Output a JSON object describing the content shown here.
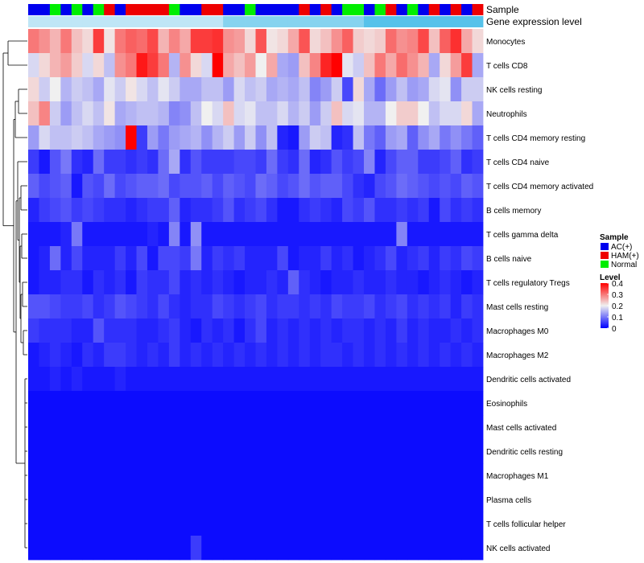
{
  "chart_data": {
    "type": "heatmap",
    "title": "",
    "annotation_rows": [
      {
        "name": "Sample",
        "label": "Sample"
      },
      {
        "name": "Gene expression level",
        "label": "Gene expression level"
      }
    ],
    "legend_sample": {
      "title": "Sample",
      "entries": [
        {
          "label": "AC(+)",
          "color": "#0000ee"
        },
        {
          "label": "HAM(+)",
          "color": "#ee0000"
        },
        {
          "label": "Normal",
          "color": "#00ee00"
        }
      ]
    },
    "legend_level": {
      "title": "Level",
      "ticks": [
        "0.4",
        "0.3",
        "0.2",
        "0.1",
        "0"
      ],
      "range": [
        0,
        0.4
      ],
      "colors": {
        "low": "#0000ff",
        "mid": "#f0f0f0",
        "high": "#ff0000"
      }
    },
    "sample_groups": [
      "A",
      "A",
      "N",
      "A",
      "N",
      "A",
      "N",
      "H",
      "A",
      "H",
      "H",
      "H",
      "H",
      "N",
      "A",
      "A",
      "H",
      "H",
      "A",
      "A",
      "N",
      "A",
      "A",
      "A",
      "A",
      "H",
      "A",
      "H",
      "A",
      "N",
      "N",
      "A",
      "N",
      "H",
      "A",
      "N",
      "A",
      "H",
      "A",
      "H",
      "A",
      "H"
    ],
    "gene_expression_level": [
      1,
      1,
      1,
      1,
      1,
      1,
      1,
      1,
      1,
      1,
      1,
      1,
      1,
      1,
      1,
      1,
      1,
      1,
      2,
      2,
      2,
      2,
      2,
      2,
      2,
      2,
      2,
      2,
      2,
      2,
      2,
      3,
      3,
      3,
      3,
      3,
      3,
      3,
      3,
      3,
      3,
      3
    ],
    "rows": [
      {
        "label": "Monocytes",
        "values": [
          0.3,
          0.28,
          0.25,
          0.3,
          0.24,
          0.22,
          0.35,
          0.21,
          0.3,
          0.32,
          0.31,
          0.34,
          0.25,
          0.29,
          0.26,
          0.35,
          0.35,
          0.36,
          0.28,
          0.27,
          0.22,
          0.33,
          0.21,
          0.22,
          0.26,
          0.33,
          0.22,
          0.24,
          0.28,
          0.32,
          0.23,
          0.22,
          0.23,
          0.31,
          0.28,
          0.29,
          0.34,
          0.24,
          0.32,
          0.36,
          0.26,
          0.22
        ]
      },
      {
        "label": "T cells CD8",
        "values": [
          0.18,
          0.22,
          0.25,
          0.27,
          0.23,
          0.18,
          0.22,
          0.16,
          0.28,
          0.3,
          0.38,
          0.35,
          0.3,
          0.15,
          0.28,
          0.22,
          0.18,
          0.4,
          0.26,
          0.24,
          0.27,
          0.2,
          0.26,
          0.14,
          0.13,
          0.24,
          0.29,
          0.37,
          0.4,
          0.19,
          0.17,
          0.24,
          0.3,
          0.26,
          0.31,
          0.28,
          0.25,
          0.14,
          0.22,
          0.27,
          0.35,
          0.14
        ]
      },
      {
        "label": "NK cells resting",
        "values": [
          0.22,
          0.17,
          0.2,
          0.15,
          0.17,
          0.16,
          0.14,
          0.19,
          0.17,
          0.21,
          0.18,
          0.16,
          0.19,
          0.17,
          0.14,
          0.14,
          0.16,
          0.16,
          0.13,
          0.18,
          0.16,
          0.17,
          0.14,
          0.15,
          0.14,
          0.16,
          0.11,
          0.13,
          0.17,
          0.06,
          0.22,
          0.14,
          0.09,
          0.13,
          0.16,
          0.13,
          0.14,
          0.18,
          0.19,
          0.12,
          0.17,
          0.17
        ]
      },
      {
        "label": "Neutrophils",
        "values": [
          0.24,
          0.29,
          0.17,
          0.13,
          0.16,
          0.18,
          0.16,
          0.21,
          0.14,
          0.15,
          0.16,
          0.16,
          0.15,
          0.11,
          0.12,
          0.16,
          0.2,
          0.18,
          0.24,
          0.18,
          0.19,
          0.16,
          0.16,
          0.18,
          0.15,
          0.17,
          0.13,
          0.17,
          0.24,
          0.18,
          0.19,
          0.15,
          0.15,
          0.2,
          0.23,
          0.23,
          0.2,
          0.16,
          0.18,
          0.18,
          0.22,
          0.14
        ]
      },
      {
        "label": "T cells CD4 memory resting",
        "values": [
          0.13,
          0.18,
          0.16,
          0.16,
          0.17,
          0.16,
          0.14,
          0.13,
          0.12,
          0.41,
          0.05,
          0.13,
          0.1,
          0.13,
          0.14,
          0.15,
          0.12,
          0.15,
          0.17,
          0.13,
          0.17,
          0.12,
          0.16,
          0.03,
          0.02,
          0.13,
          0.17,
          0.16,
          0.03,
          0.04,
          0.16,
          0.1,
          0.08,
          0.13,
          0.14,
          0.08,
          0.12,
          0.14,
          0.1,
          0.12,
          0.1,
          0.08
        ]
      },
      {
        "label": "T cells CD4 naive",
        "values": [
          0.05,
          0.02,
          0.07,
          0.1,
          0.04,
          0.03,
          0.09,
          0.05,
          0.05,
          0.04,
          0.05,
          0.04,
          0.09,
          0.14,
          0.04,
          0.07,
          0.05,
          0.05,
          0.05,
          0.06,
          0.06,
          0.05,
          0.09,
          0.05,
          0.04,
          0.09,
          0.03,
          0.04,
          0.07,
          0.05,
          0.06,
          0.11,
          0.03,
          0.06,
          0.08,
          0.08,
          0.05,
          0.05,
          0.06,
          0.08,
          0.04,
          0.05
        ]
      },
      {
        "label": "T cells CD4 memory activated",
        "values": [
          0.08,
          0.06,
          0.07,
          0.08,
          0.02,
          0.07,
          0.06,
          0.09,
          0.06,
          0.07,
          0.08,
          0.08,
          0.09,
          0.06,
          0.07,
          0.07,
          0.08,
          0.06,
          0.08,
          0.07,
          0.06,
          0.09,
          0.08,
          0.06,
          0.07,
          0.09,
          0.07,
          0.08,
          0.08,
          0.06,
          0.04,
          0.03,
          0.06,
          0.07,
          0.09,
          0.08,
          0.07,
          0.06,
          0.07,
          0.06,
          0.08,
          0.07
        ]
      },
      {
        "label": "B cells memory",
        "values": [
          0.03,
          0.05,
          0.06,
          0.07,
          0.05,
          0.06,
          0.05,
          0.04,
          0.04,
          0.03,
          0.04,
          0.05,
          0.05,
          0.08,
          0.03,
          0.04,
          0.04,
          0.05,
          0.07,
          0.04,
          0.05,
          0.06,
          0.04,
          0.02,
          0.02,
          0.04,
          0.05,
          0.04,
          0.03,
          0.06,
          0.05,
          0.07,
          0.04,
          0.04,
          0.05,
          0.04,
          0.05,
          0.02,
          0.06,
          0.04,
          0.05,
          0.04
        ]
      },
      {
        "label": "T cells gamma delta",
        "values": [
          0.02,
          0.02,
          0.02,
          0.03,
          0.1,
          0.02,
          0.02,
          0.02,
          0.02,
          0.02,
          0.02,
          0.03,
          0.02,
          0.11,
          0.02,
          0.12,
          0.02,
          0.02,
          0.02,
          0.02,
          0.02,
          0.02,
          0.02,
          0.02,
          0.02,
          0.02,
          0.02,
          0.02,
          0.02,
          0.02,
          0.02,
          0.02,
          0.02,
          0.02,
          0.11,
          0.02,
          0.02,
          0.02,
          0.02,
          0.02,
          0.02,
          0.02
        ]
      },
      {
        "label": "B cells naive",
        "values": [
          0.02,
          0.03,
          0.09,
          0.03,
          0.06,
          0.03,
          0.03,
          0.03,
          0.05,
          0.03,
          0.06,
          0.02,
          0.06,
          0.06,
          0.05,
          0.1,
          0.03,
          0.05,
          0.04,
          0.05,
          0.03,
          0.03,
          0.03,
          0.06,
          0.02,
          0.03,
          0.03,
          0.05,
          0.03,
          0.04,
          0.02,
          0.03,
          0.04,
          0.06,
          0.03,
          0.04,
          0.05,
          0.03,
          0.05,
          0.04,
          0.06,
          0.05
        ]
      },
      {
        "label": "T cells regulatory  Tregs",
        "values": [
          0.02,
          0.03,
          0.03,
          0.04,
          0.04,
          0.02,
          0.04,
          0.03,
          0.04,
          0.02,
          0.05,
          0.04,
          0.04,
          0.06,
          0.03,
          0.04,
          0.03,
          0.04,
          0.03,
          0.02,
          0.03,
          0.03,
          0.04,
          0.03,
          0.08,
          0.04,
          0.03,
          0.02,
          0.03,
          0.03,
          0.04,
          0.03,
          0.03,
          0.04,
          0.03,
          0.03,
          0.02,
          0.03,
          0.04,
          0.03,
          0.02,
          0.03
        ]
      },
      {
        "label": "Mast cells resting",
        "values": [
          0.07,
          0.07,
          0.06,
          0.05,
          0.05,
          0.06,
          0.04,
          0.05,
          0.07,
          0.06,
          0.05,
          0.04,
          0.06,
          0.04,
          0.03,
          0.04,
          0.04,
          0.06,
          0.05,
          0.04,
          0.05,
          0.06,
          0.04,
          0.05,
          0.05,
          0.04,
          0.05,
          0.04,
          0.06,
          0.05,
          0.05,
          0.06,
          0.04,
          0.05,
          0.06,
          0.04,
          0.05,
          0.04,
          0.05,
          0.03,
          0.05,
          0.04
        ]
      },
      {
        "label": "Macrophages M0",
        "values": [
          0.05,
          0.04,
          0.04,
          0.04,
          0.03,
          0.03,
          0.07,
          0.04,
          0.04,
          0.04,
          0.03,
          0.03,
          0.04,
          0.05,
          0.03,
          0.02,
          0.04,
          0.03,
          0.04,
          0.02,
          0.04,
          0.06,
          0.03,
          0.04,
          0.03,
          0.04,
          0.03,
          0.04,
          0.03,
          0.04,
          0.04,
          0.03,
          0.04,
          0.03,
          0.05,
          0.03,
          0.04,
          0.03,
          0.03,
          0.04,
          0.03,
          0.04
        ]
      },
      {
        "label": "Macrophages M2",
        "values": [
          0.02,
          0.03,
          0.04,
          0.03,
          0.02,
          0.04,
          0.03,
          0.05,
          0.05,
          0.04,
          0.03,
          0.04,
          0.03,
          0.05,
          0.03,
          0.04,
          0.03,
          0.04,
          0.03,
          0.04,
          0.03,
          0.04,
          0.03,
          0.04,
          0.03,
          0.04,
          0.03,
          0.04,
          0.04,
          0.03,
          0.04,
          0.03,
          0.04,
          0.03,
          0.04,
          0.03,
          0.04,
          0.03,
          0.04,
          0.03,
          0.04,
          0.03
        ]
      },
      {
        "label": "Dendritic cells activated",
        "values": [
          0.02,
          0.02,
          0.03,
          0.02,
          0.03,
          0.02,
          0.02,
          0.02,
          0.03,
          0.02,
          0.02,
          0.02,
          0.02,
          0.02,
          0.02,
          0.02,
          0.02,
          0.02,
          0.02,
          0.02,
          0.02,
          0.02,
          0.02,
          0.02,
          0.02,
          0.02,
          0.02,
          0.02,
          0.02,
          0.02,
          0.02,
          0.02,
          0.02,
          0.02,
          0.02,
          0.02,
          0.02,
          0.02,
          0.02,
          0.02,
          0.02,
          0.02
        ]
      },
      {
        "label": "Eosinophils",
        "values": [
          0.01,
          0.01,
          0.01,
          0.01,
          0.01,
          0.01,
          0.01,
          0.01,
          0.01,
          0.01,
          0.01,
          0.01,
          0.01,
          0.01,
          0.01,
          0.01,
          0.01,
          0.01,
          0.01,
          0.01,
          0.01,
          0.01,
          0.01,
          0.01,
          0.01,
          0.01,
          0.01,
          0.01,
          0.01,
          0.01,
          0.01,
          0.01,
          0.01,
          0.01,
          0.01,
          0.01,
          0.01,
          0.01,
          0.01,
          0.01,
          0.01,
          0.01
        ]
      },
      {
        "label": "Mast cells activated",
        "values": [
          0.01,
          0.01,
          0.01,
          0.01,
          0.01,
          0.01,
          0.01,
          0.01,
          0.01,
          0.01,
          0.01,
          0.01,
          0.01,
          0.01,
          0.01,
          0.01,
          0.01,
          0.01,
          0.01,
          0.01,
          0.01,
          0.01,
          0.01,
          0.01,
          0.01,
          0.01,
          0.01,
          0.01,
          0.01,
          0.01,
          0.01,
          0.01,
          0.01,
          0.01,
          0.01,
          0.01,
          0.01,
          0.01,
          0.01,
          0.01,
          0.01,
          0.01
        ]
      },
      {
        "label": "Dendritic cells resting",
        "values": [
          0.01,
          0.01,
          0.01,
          0.01,
          0.01,
          0.01,
          0.01,
          0.01,
          0.01,
          0.01,
          0.01,
          0.01,
          0.01,
          0.01,
          0.01,
          0.01,
          0.01,
          0.01,
          0.01,
          0.01,
          0.01,
          0.01,
          0.01,
          0.01,
          0.01,
          0.01,
          0.01,
          0.01,
          0.01,
          0.01,
          0.01,
          0.01,
          0.01,
          0.01,
          0.01,
          0.01,
          0.01,
          0.01,
          0.01,
          0.01,
          0.01,
          0.01
        ]
      },
      {
        "label": "Macrophages M1",
        "values": [
          0.01,
          0.01,
          0.01,
          0.01,
          0.01,
          0.01,
          0.01,
          0.01,
          0.01,
          0.01,
          0.01,
          0.01,
          0.01,
          0.01,
          0.01,
          0.01,
          0.01,
          0.01,
          0.01,
          0.01,
          0.01,
          0.01,
          0.01,
          0.01,
          0.01,
          0.01,
          0.01,
          0.01,
          0.01,
          0.01,
          0.01,
          0.01,
          0.01,
          0.01,
          0.01,
          0.01,
          0.01,
          0.01,
          0.01,
          0.01,
          0.01,
          0.01
        ]
      },
      {
        "label": "Plasma cells",
        "values": [
          0.01,
          0.01,
          0.01,
          0.01,
          0.01,
          0.01,
          0.01,
          0.01,
          0.01,
          0.01,
          0.01,
          0.01,
          0.01,
          0.01,
          0.01,
          0.01,
          0.01,
          0.01,
          0.01,
          0.01,
          0.01,
          0.01,
          0.01,
          0.01,
          0.01,
          0.01,
          0.01,
          0.01,
          0.01,
          0.01,
          0.01,
          0.01,
          0.01,
          0.01,
          0.01,
          0.01,
          0.01,
          0.01,
          0.01,
          0.01,
          0.01,
          0.01
        ]
      },
      {
        "label": "T cells follicular helper",
        "values": [
          0.01,
          0.01,
          0.01,
          0.01,
          0.01,
          0.01,
          0.01,
          0.01,
          0.01,
          0.01,
          0.01,
          0.01,
          0.01,
          0.01,
          0.01,
          0.01,
          0.01,
          0.01,
          0.01,
          0.01,
          0.01,
          0.01,
          0.01,
          0.01,
          0.01,
          0.01,
          0.01,
          0.01,
          0.01,
          0.01,
          0.01,
          0.01,
          0.01,
          0.01,
          0.01,
          0.01,
          0.01,
          0.01,
          0.01,
          0.01,
          0.01,
          0.01
        ]
      },
      {
        "label": "NK cells activated",
        "values": [
          0.01,
          0.01,
          0.01,
          0.01,
          0.01,
          0.01,
          0.01,
          0.01,
          0.01,
          0.01,
          0.01,
          0.01,
          0.01,
          0.01,
          0.01,
          0.05,
          0.01,
          0.01,
          0.01,
          0.01,
          0.01,
          0.01,
          0.01,
          0.01,
          0.01,
          0.01,
          0.01,
          0.01,
          0.01,
          0.01,
          0.01,
          0.01,
          0.01,
          0.01,
          0.01,
          0.01,
          0.01,
          0.01,
          0.01,
          0.01,
          0.01,
          0.01
        ]
      }
    ]
  }
}
